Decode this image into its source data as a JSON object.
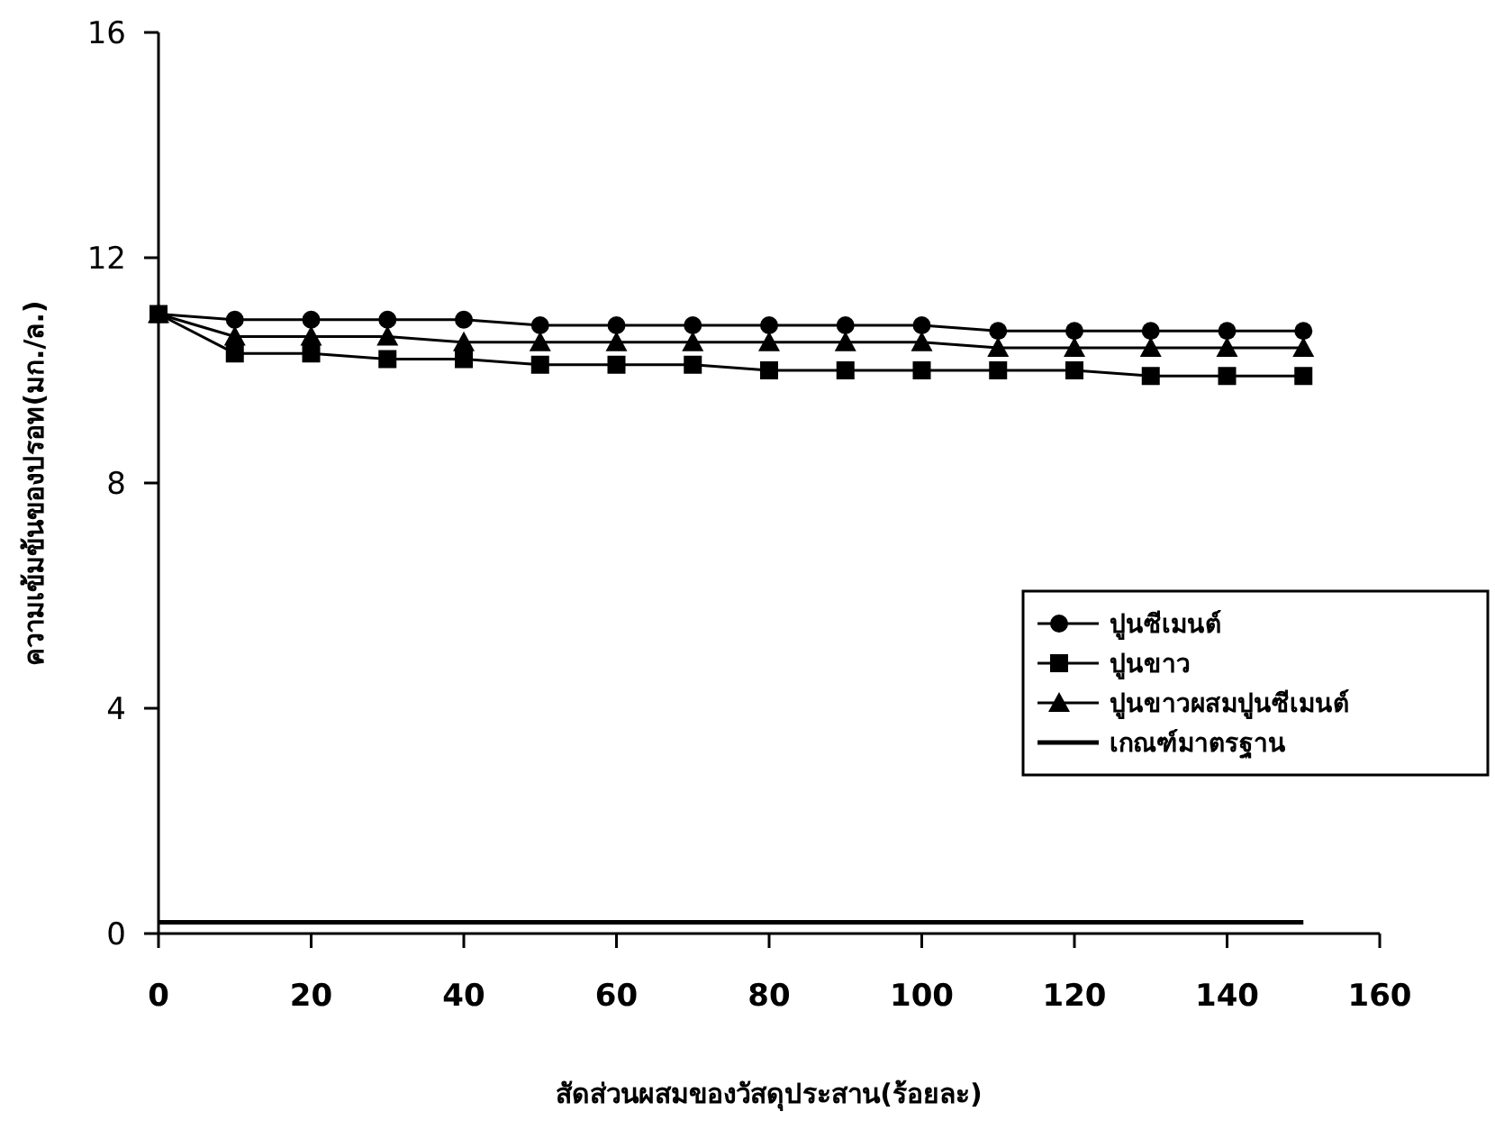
{
  "chart_data": {
    "type": "line",
    "xlabel": "สัดส่วนผสมของวัสดุประสาน(ร้อยละ)",
    "ylabel": "ความเข้มข้นของปรอท(มก./ล.)",
    "x": [
      0,
      10,
      20,
      30,
      40,
      50,
      60,
      70,
      80,
      90,
      100,
      110,
      120,
      130,
      140,
      150
    ],
    "series": [
      {
        "name": "ปูนซีเมนต์",
        "color": "#000000",
        "marker": "circle",
        "values": [
          11.0,
          10.9,
          10.9,
          10.9,
          10.9,
          10.8,
          10.8,
          10.8,
          10.8,
          10.8,
          10.8,
          10.7,
          10.7,
          10.7,
          10.7,
          10.7
        ]
      },
      {
        "name": "ปูนขาว",
        "color": "#000000",
        "marker": "square",
        "values": [
          11.0,
          10.3,
          10.3,
          10.2,
          10.2,
          10.1,
          10.1,
          10.1,
          10.0,
          10.0,
          10.0,
          10.0,
          10.0,
          9.9,
          9.9,
          9.9
        ]
      },
      {
        "name": "ปูนขาวผสมปูนซีเมนต์",
        "color": "#000000",
        "marker": "triangle",
        "values": [
          11.0,
          10.6,
          10.6,
          10.6,
          10.5,
          10.5,
          10.5,
          10.5,
          10.5,
          10.5,
          10.5,
          10.4,
          10.4,
          10.4,
          10.4,
          10.4
        ]
      },
      {
        "name": "เกณฑ์มาตรฐาน",
        "color": "#000000",
        "marker": "none",
        "x": [
          0,
          150
        ],
        "values": [
          0.2,
          0.2
        ]
      }
    ],
    "xlim": [
      0,
      160
    ],
    "xticks": [
      0,
      20,
      40,
      60,
      80,
      100,
      120,
      140,
      160
    ],
    "ylim": [
      0,
      16
    ],
    "yticks": [
      0,
      4,
      8,
      12,
      16
    ],
    "grid": false,
    "legend": "right"
  }
}
